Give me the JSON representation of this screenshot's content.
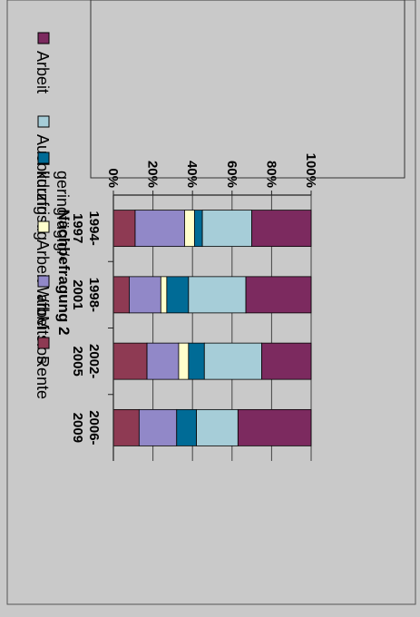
{
  "chart_data": {
    "type": "bar",
    "stacked": true,
    "percent": true,
    "orientation": "vertical",
    "rotation": "rotated 90 degrees clockwise",
    "title": "Nachbefragung 2",
    "categories": [
      "1994-\n1997",
      "1998-\n2001",
      "2002-\n2005",
      "2006-\n2009"
    ],
    "ylim": [
      0,
      100
    ],
    "yticks": [
      "0%",
      "20%",
      "40%",
      "60%",
      "80%",
      "100%"
    ],
    "grid": true,
    "legend_position": "right",
    "series": [
      {
        "name": "Rente",
        "color": "#8e3a53",
        "values": [
          11,
          8,
          17,
          13
        ]
      },
      {
        "name": "arbeitslos",
        "color": "#9188c8",
        "values": [
          25,
          16,
          16,
          19
        ]
      },
      {
        "name": "Arbeit WfbM",
        "color": "#ffffcc",
        "values": [
          5,
          3,
          5,
          0
        ]
      },
      {
        "name": "geringfügig/-\nkurzfristig",
        "color": "#006b96",
        "values": [
          4,
          11,
          8,
          10
        ]
      },
      {
        "name": "Ausbildung",
        "color": "#a6cdd8",
        "values": [
          25,
          29,
          29,
          21
        ]
      },
      {
        "name": "Arbeit",
        "color": "#7c2a5f",
        "values": [
          30,
          33,
          25,
          37
        ]
      }
    ]
  }
}
